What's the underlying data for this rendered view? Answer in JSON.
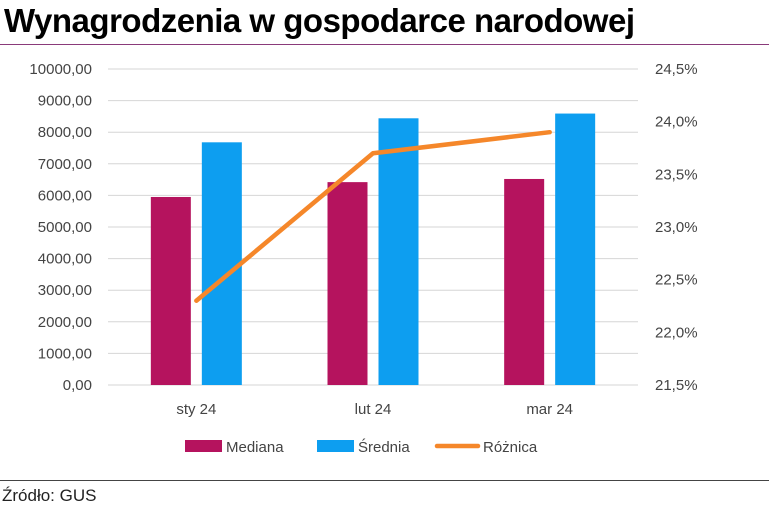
{
  "title": "Wynagrodzenia w gospodarce narodowej",
  "source": "Źródło: GUS",
  "colors": {
    "mediana": "#b5135e",
    "srednia": "#0d9ef0",
    "roznica": "#f5872a",
    "grid": "#d6d6d6",
    "title_rule": "#8a3a7a"
  },
  "chart_data": {
    "type": "bar+line",
    "title": "Wynagrodzenia w gospodarce narodowej",
    "categories": [
      "sty 24",
      "lut 24",
      "mar 24"
    ],
    "series": [
      {
        "name": "Mediana",
        "type": "bar",
        "axis": "left",
        "values": [
          5950,
          6420,
          6520
        ]
      },
      {
        "name": "Średnia",
        "type": "bar",
        "axis": "left",
        "values": [
          7680,
          8440,
          8590
        ]
      },
      {
        "name": "Różnica",
        "type": "line",
        "axis": "right",
        "values": [
          22.3,
          23.7,
          23.9
        ]
      }
    ],
    "y_left": {
      "min": 0,
      "max": 10000,
      "step": 1000,
      "tick_labels": [
        "0,00",
        "1000,00",
        "2000,00",
        "3000,00",
        "4000,00",
        "5000,00",
        "6000,00",
        "7000,00",
        "8000,00",
        "9000,00",
        "10000,00"
      ]
    },
    "y_right": {
      "min": 21.5,
      "max": 24.5,
      "step": 0.5,
      "tick_labels": [
        "21,5%",
        "22,0%",
        "22,5%",
        "23,0%",
        "23,5%",
        "24,0%",
        "24,5%"
      ]
    },
    "grid": true,
    "legend_position": "bottom"
  }
}
